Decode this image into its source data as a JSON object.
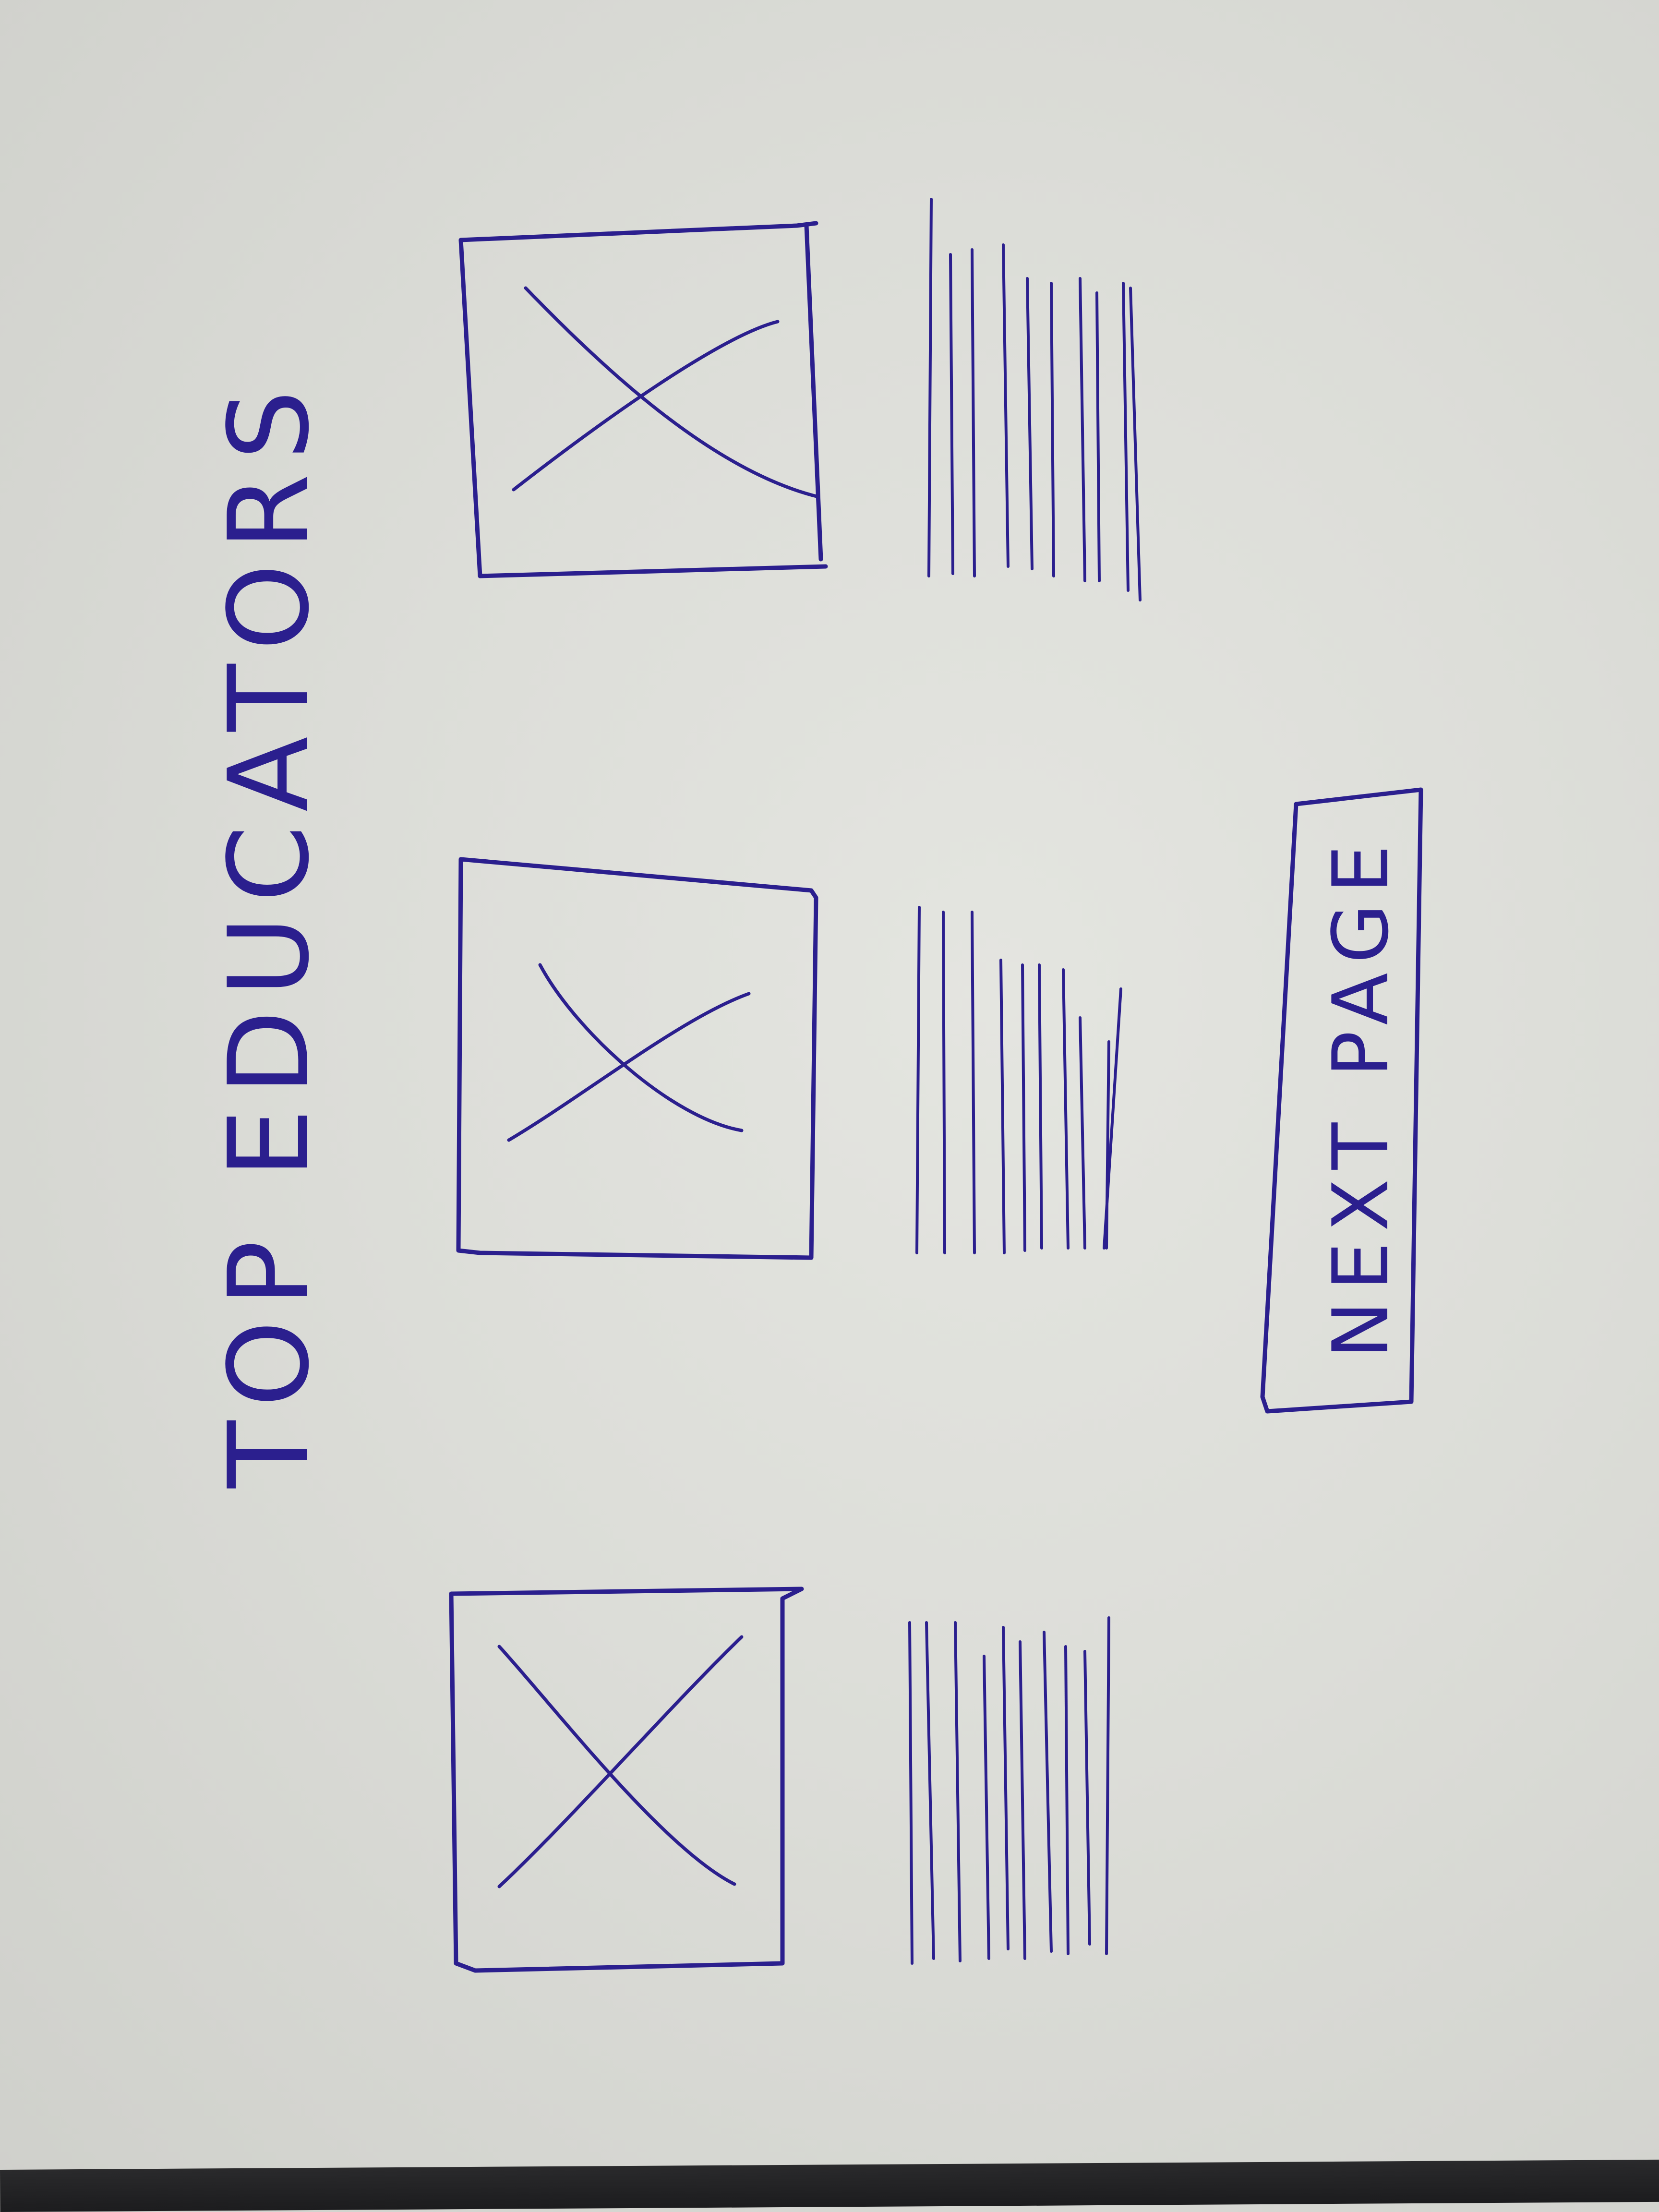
{
  "page": {
    "title": "TOP EDUCATORS"
  },
  "educators": [
    {
      "image_icon": "image-placeholder-icon"
    },
    {
      "image_icon": "image-placeholder-icon"
    },
    {
      "image_icon": "image-placeholder-icon"
    }
  ],
  "next_button": {
    "label": "NEXT PAGE"
  },
  "colors": {
    "ink": "#2b1f8e",
    "paper": "#dcddd8",
    "table": "#1c1c1e"
  }
}
